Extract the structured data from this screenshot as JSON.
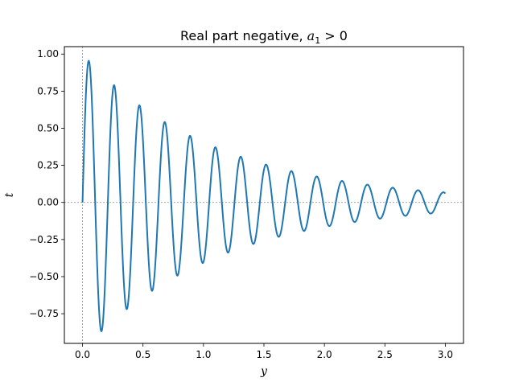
{
  "chart_data": {
    "type": "line",
    "title": "Real part negative, a₁ > 0",
    "title_parts": {
      "main": "Real part negative, ",
      "var": "a",
      "sub": "1",
      "rest": " > 0"
    },
    "xlabel": "y",
    "ylabel": "t",
    "xlim": [
      -0.15,
      3.15
    ],
    "ylim": [
      -0.95,
      1.05
    ],
    "xticks": [
      "0.0",
      "0.5",
      "1.0",
      "1.5",
      "2.0",
      "2.5",
      "3.0"
    ],
    "yticks": [
      "−0.75",
      "−0.50",
      "−0.25",
      "0.00",
      "0.25",
      "0.50",
      "0.75",
      "1.00"
    ],
    "grid": false,
    "reference_lines": {
      "horizontal_y": 0,
      "vertical_x": 0,
      "style": "dotted-gray"
    },
    "series": [
      {
        "color": "#1f77b4",
        "function": "exp(-0.9 y) * sin(30 y)",
        "x": [
          0.0,
          0.05,
          0.15,
          0.26,
          0.36,
          0.47,
          0.57,
          0.68,
          0.78,
          0.89,
          0.99,
          1.1,
          1.2,
          1.31,
          1.41,
          1.52,
          1.62,
          1.73,
          1.83,
          1.94,
          2.04,
          2.15,
          2.25,
          2.36,
          2.46,
          2.57,
          2.67,
          2.78,
          2.88,
          3.0
        ],
        "y": [
          0.0,
          0.95,
          -0.86,
          0.77,
          -0.69,
          0.62,
          -0.56,
          0.51,
          -0.45,
          0.41,
          -0.37,
          0.33,
          -0.3,
          0.27,
          -0.24,
          0.22,
          -0.2,
          0.18,
          -0.16,
          0.14,
          -0.13,
          0.12,
          -0.11,
          0.1,
          -0.09,
          0.08,
          -0.07,
          0.06,
          -0.06,
          0.05
        ]
      }
    ]
  }
}
